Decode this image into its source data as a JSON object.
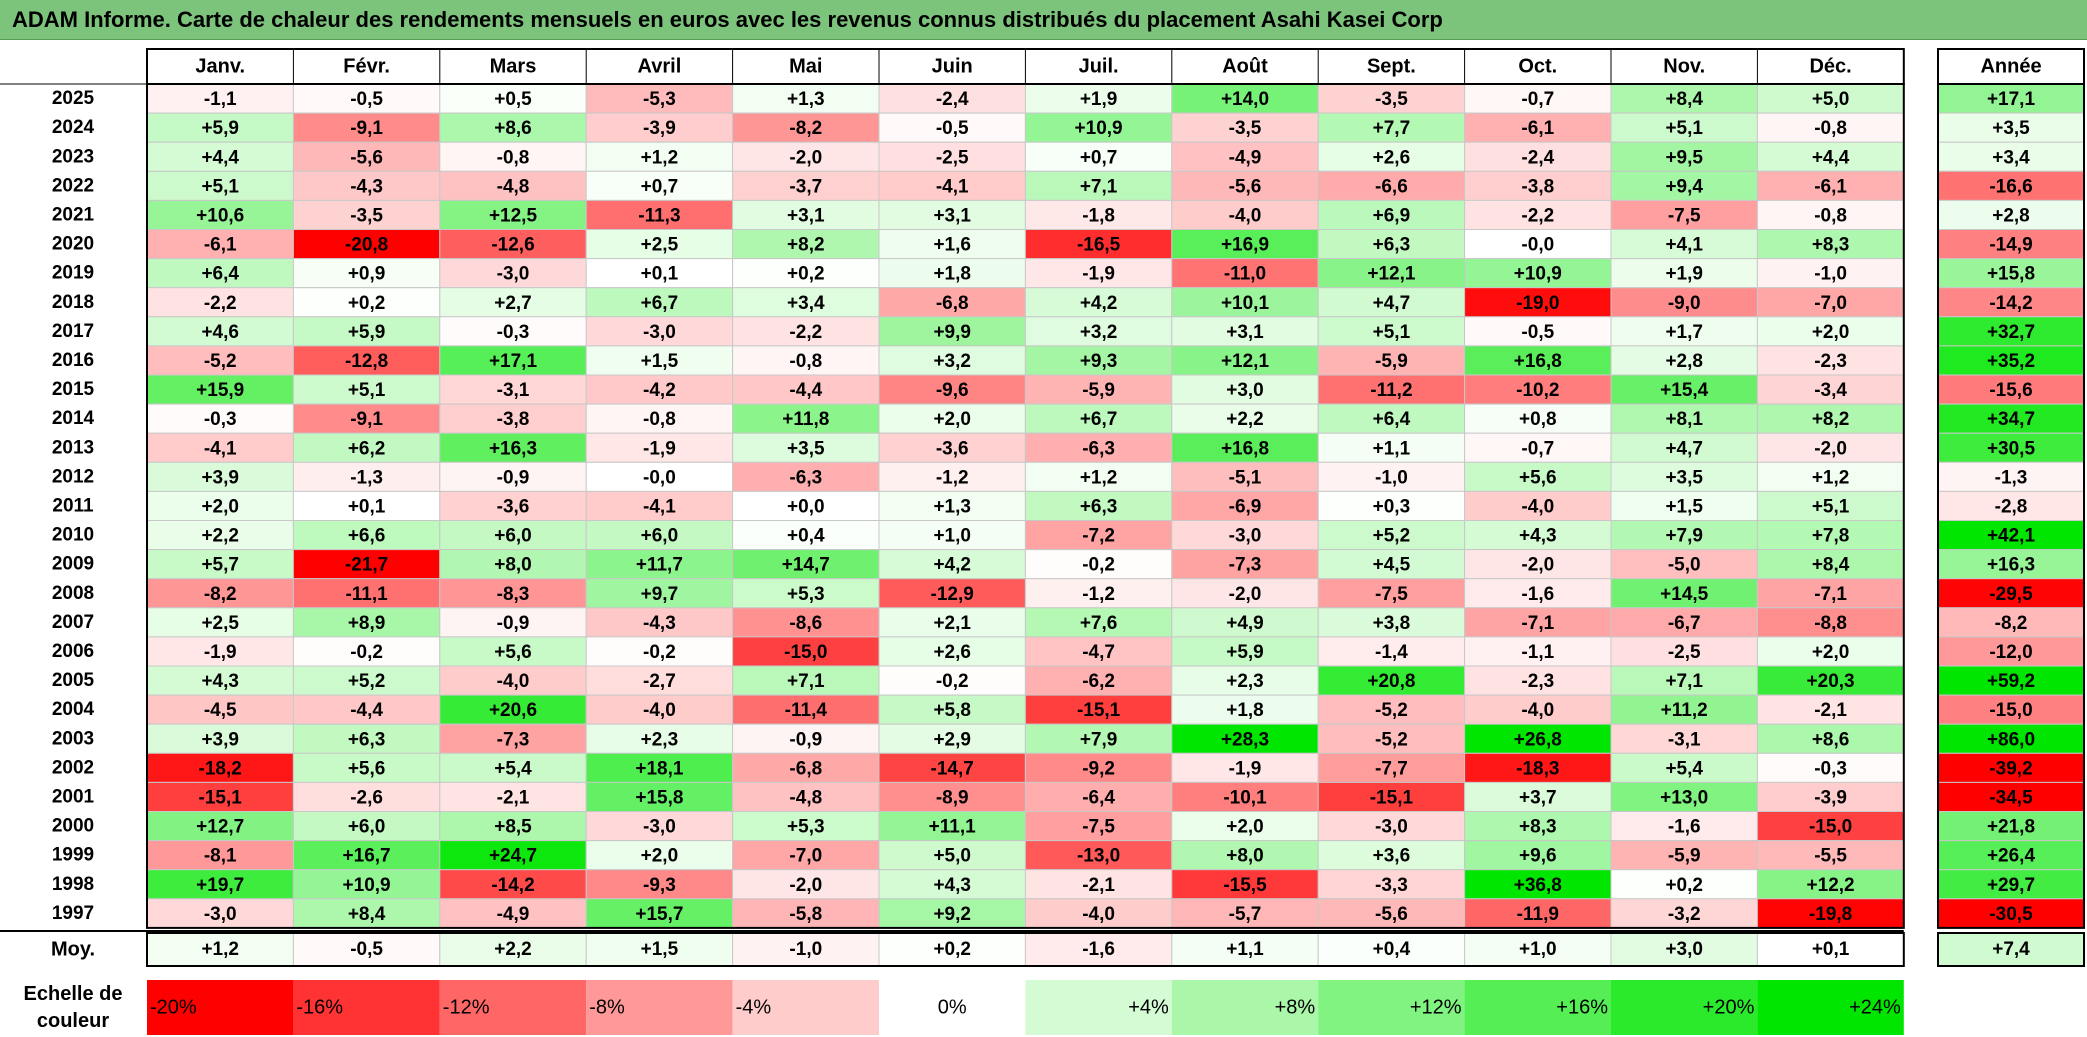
{
  "title": "ADAM Informe. Carte de chaleur des rendements mensuels en euros avec les revenus connus distribués du placement Asahi Kasei Corp",
  "chart_data": {
    "type": "heatmap",
    "months": [
      "Janv.",
      "Févr.",
      "Mars",
      "Avril",
      "Mai",
      "Juin",
      "Juil.",
      "Août",
      "Sept.",
      "Oct.",
      "Nov.",
      "Déc."
    ],
    "year_header": "Année",
    "rows": [
      {
        "year": "2025",
        "values": [
          "-1,1",
          "-0,5",
          "+0,5",
          "-5,3",
          "+1,3",
          "-2,4",
          "+1,9",
          "+14,0",
          "-3,5",
          "-0,7",
          "+8,4",
          "+5,0"
        ],
        "annual": "+17,1"
      },
      {
        "year": "2024",
        "values": [
          "+5,9",
          "-9,1",
          "+8,6",
          "-3,9",
          "-8,2",
          "-0,5",
          "+10,9",
          "-3,5",
          "+7,7",
          "-6,1",
          "+5,1",
          "-0,8"
        ],
        "annual": "+3,5"
      },
      {
        "year": "2023",
        "values": [
          "+4,4",
          "-5,6",
          "-0,8",
          "+1,2",
          "-2,0",
          "-2,5",
          "+0,7",
          "-4,9",
          "+2,6",
          "-2,4",
          "+9,5",
          "+4,4"
        ],
        "annual": "+3,4"
      },
      {
        "year": "2022",
        "values": [
          "+5,1",
          "-4,3",
          "-4,8",
          "+0,7",
          "-3,7",
          "-4,1",
          "+7,1",
          "-5,6",
          "-6,6",
          "-3,8",
          "+9,4",
          "-6,1"
        ],
        "annual": "-16,6"
      },
      {
        "year": "2021",
        "values": [
          "+10,6",
          "-3,5",
          "+12,5",
          "-11,3",
          "+3,1",
          "+3,1",
          "-1,8",
          "-4,0",
          "+6,9",
          "-2,2",
          "-7,5",
          "-0,8"
        ],
        "annual": "+2,8"
      },
      {
        "year": "2020",
        "values": [
          "-6,1",
          "-20,8",
          "-12,6",
          "+2,5",
          "+8,2",
          "+1,6",
          "-16,5",
          "+16,9",
          "+6,3",
          "-0,0",
          "+4,1",
          "+8,3"
        ],
        "annual": "-14,9"
      },
      {
        "year": "2019",
        "values": [
          "+6,4",
          "+0,9",
          "-3,0",
          "+0,1",
          "+0,2",
          "+1,8",
          "-1,9",
          "-11,0",
          "+12,1",
          "+10,9",
          "+1,9",
          "-1,0"
        ],
        "annual": "+15,8"
      },
      {
        "year": "2018",
        "values": [
          "-2,2",
          "+0,2",
          "+2,7",
          "+6,7",
          "+3,4",
          "-6,8",
          "+4,2",
          "+10,1",
          "+4,7",
          "-19,0",
          "-9,0",
          "-7,0"
        ],
        "annual": "-14,2"
      },
      {
        "year": "2017",
        "values": [
          "+4,6",
          "+5,9",
          "-0,3",
          "-3,0",
          "-2,2",
          "+9,9",
          "+3,2",
          "+3,1",
          "+5,1",
          "-0,5",
          "+1,7",
          "+2,0"
        ],
        "annual": "+32,7"
      },
      {
        "year": "2016",
        "values": [
          "-5,2",
          "-12,8",
          "+17,1",
          "+1,5",
          "-0,8",
          "+3,2",
          "+9,3",
          "+12,1",
          "-5,9",
          "+16,8",
          "+2,8",
          "-2,3"
        ],
        "annual": "+35,2"
      },
      {
        "year": "2015",
        "values": [
          "+15,9",
          "+5,1",
          "-3,1",
          "-4,2",
          "-4,4",
          "-9,6",
          "-5,9",
          "+3,0",
          "-11,2",
          "-10,2",
          "+15,4",
          "-3,4"
        ],
        "annual": "-15,6"
      },
      {
        "year": "2014",
        "values": [
          "-0,3",
          "-9,1",
          "-3,8",
          "-0,8",
          "+11,8",
          "+2,0",
          "+6,7",
          "+2,2",
          "+6,4",
          "+0,8",
          "+8,1",
          "+8,2"
        ],
        "annual": "+34,7"
      },
      {
        "year": "2013",
        "values": [
          "-4,1",
          "+6,2",
          "+16,3",
          "-1,9",
          "+3,5",
          "-3,6",
          "-6,3",
          "+16,8",
          "+1,1",
          "-0,7",
          "+4,7",
          "-2,0"
        ],
        "annual": "+30,5"
      },
      {
        "year": "2012",
        "values": [
          "+3,9",
          "-1,3",
          "-0,9",
          "-0,0",
          "-6,3",
          "-1,2",
          "+1,2",
          "-5,1",
          "-1,0",
          "+5,6",
          "+3,5",
          "+1,2"
        ],
        "annual": "-1,3"
      },
      {
        "year": "2011",
        "values": [
          "+2,0",
          "+0,1",
          "-3,6",
          "-4,1",
          "+0,0",
          "+1,3",
          "+6,3",
          "-6,9",
          "+0,3",
          "-4,0",
          "+1,5",
          "+5,1"
        ],
        "annual": "-2,8"
      },
      {
        "year": "2010",
        "values": [
          "+2,2",
          "+6,6",
          "+6,0",
          "+6,0",
          "+0,4",
          "+1,0",
          "-7,2",
          "-3,0",
          "+5,2",
          "+4,3",
          "+7,9",
          "+7,8"
        ],
        "annual": "+42,1"
      },
      {
        "year": "2009",
        "values": [
          "+5,7",
          "-21,7",
          "+8,0",
          "+11,7",
          "+14,7",
          "+4,2",
          "-0,2",
          "-7,3",
          "+4,5",
          "-2,0",
          "-5,0",
          "+8,4"
        ],
        "annual": "+16,3"
      },
      {
        "year": "2008",
        "values": [
          "-8,2",
          "-11,1",
          "-8,3",
          "+9,7",
          "+5,3",
          "-12,9",
          "-1,2",
          "-2,0",
          "-7,5",
          "-1,6",
          "+14,5",
          "-7,1"
        ],
        "annual": "-29,5"
      },
      {
        "year": "2007",
        "values": [
          "+2,5",
          "+8,9",
          "-0,9",
          "-4,3",
          "-8,6",
          "+2,1",
          "+7,6",
          "+4,9",
          "+3,8",
          "-7,1",
          "-6,7",
          "-8,8"
        ],
        "annual": "-8,2"
      },
      {
        "year": "2006",
        "values": [
          "-1,9",
          "-0,2",
          "+5,6",
          "-0,2",
          "-15,0",
          "+2,6",
          "-4,7",
          "+5,9",
          "-1,4",
          "-1,1",
          "-2,5",
          "+2,0"
        ],
        "annual": "-12,0"
      },
      {
        "year": "2005",
        "values": [
          "+4,3",
          "+5,2",
          "-4,0",
          "-2,7",
          "+7,1",
          "-0,2",
          "-6,2",
          "+2,3",
          "+20,8",
          "-2,3",
          "+7,1",
          "+20,3"
        ],
        "annual": "+59,2"
      },
      {
        "year": "2004",
        "values": [
          "-4,5",
          "-4,4",
          "+20,6",
          "-4,0",
          "-11,4",
          "+5,8",
          "-15,1",
          "+1,8",
          "-5,2",
          "-4,0",
          "+11,2",
          "-2,1"
        ],
        "annual": "-15,0"
      },
      {
        "year": "2003",
        "values": [
          "+3,9",
          "+6,3",
          "-7,3",
          "+2,3",
          "-0,9",
          "+2,9",
          "+7,9",
          "+28,3",
          "-5,2",
          "+26,8",
          "-3,1",
          "+8,6"
        ],
        "annual": "+86,0"
      },
      {
        "year": "2002",
        "values": [
          "-18,2",
          "+5,6",
          "+5,4",
          "+18,1",
          "-6,8",
          "-14,7",
          "-9,2",
          "-1,9",
          "-7,7",
          "-18,3",
          "+5,4",
          "-0,3"
        ],
        "annual": "-39,2"
      },
      {
        "year": "2001",
        "values": [
          "-15,1",
          "-2,6",
          "-2,1",
          "+15,8",
          "-4,8",
          "-8,9",
          "-6,4",
          "-10,1",
          "-15,1",
          "+3,7",
          "+13,0",
          "-3,9"
        ],
        "annual": "-34,5"
      },
      {
        "year": "2000",
        "values": [
          "+12,7",
          "+6,0",
          "+8,5",
          "-3,0",
          "+5,3",
          "+11,1",
          "-7,5",
          "+2,0",
          "-3,0",
          "+8,3",
          "-1,6",
          "-15,0"
        ],
        "annual": "+21,8"
      },
      {
        "year": "1999",
        "values": [
          "-8,1",
          "+16,7",
          "+24,7",
          "+2,0",
          "-7,0",
          "+5,0",
          "-13,0",
          "+8,0",
          "+3,6",
          "+9,6",
          "-5,9",
          "-5,5"
        ],
        "annual": "+26,4"
      },
      {
        "year": "1998",
        "values": [
          "+19,7",
          "+10,9",
          "-14,2",
          "-9,3",
          "-2,0",
          "+4,3",
          "-2,1",
          "-15,5",
          "-3,3",
          "+36,8",
          "+0,2",
          "+12,2"
        ],
        "annual": "+29,7"
      },
      {
        "year": "1997",
        "values": [
          "-3,0",
          "+8,4",
          "-4,9",
          "+15,7",
          "-5,8",
          "+9,2",
          "-4,0",
          "-5,7",
          "-5,6",
          "-11,9",
          "-3,2",
          "-19,8"
        ],
        "annual": "-30,5"
      }
    ],
    "average": {
      "label": "Moy.",
      "values": [
        "+1,2",
        "-0,5",
        "+2,2",
        "+1,5",
        "-1,0",
        "+0,2",
        "-1,6",
        "+1,1",
        "+0,4",
        "+1,0",
        "+3,0",
        "+0,1"
      ],
      "annual": "+7,4"
    },
    "scale": {
      "label_line1": "Echelle de",
      "label_line2": "couleur",
      "steps": [
        "-20%",
        "-16%",
        "-12%",
        "-8%",
        "-4%",
        "0%",
        "+4%",
        "+8%",
        "+12%",
        "+16%",
        "+20%",
        "+24%"
      ],
      "step_values": [
        -20,
        -16,
        -12,
        -8,
        -4,
        0,
        4,
        8,
        12,
        16,
        20,
        24
      ]
    },
    "colors": {
      "negative_max": "#ff0000",
      "neutral": "#ffffff",
      "positive_max": "#00e600",
      "title_bar": "#7cc47c"
    }
  }
}
